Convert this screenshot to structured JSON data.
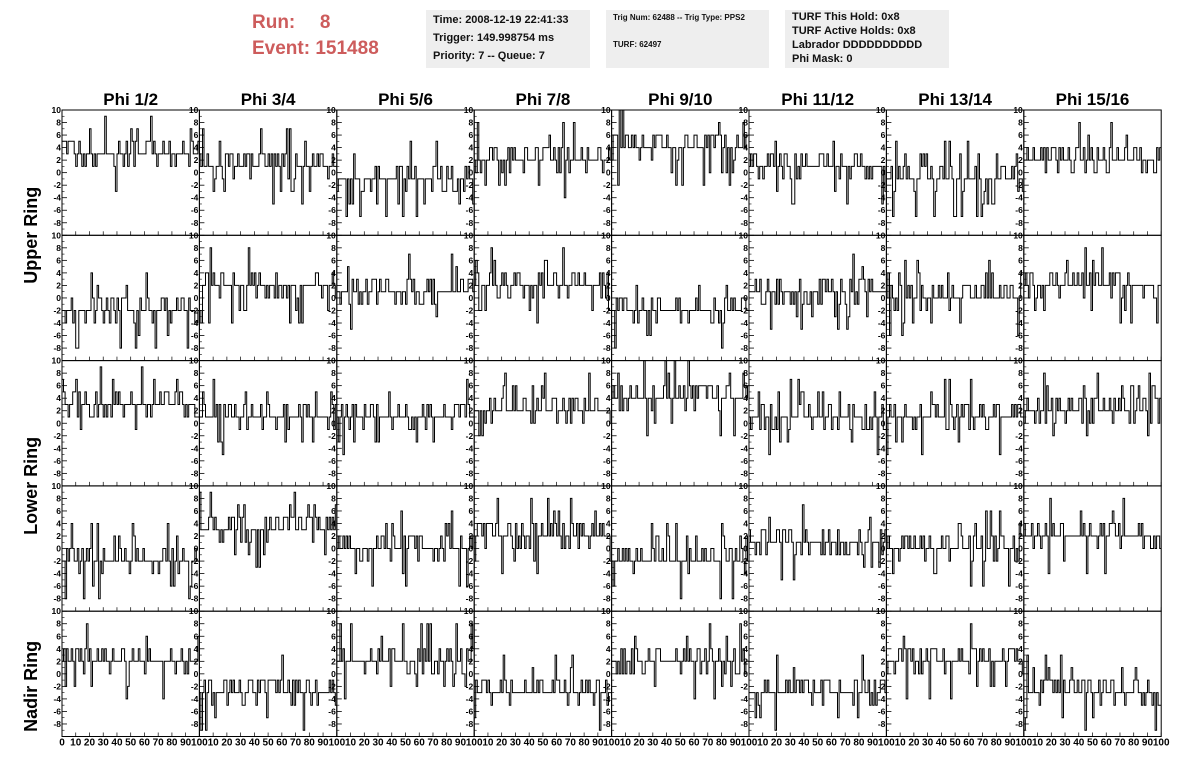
{
  "run_label": "Run:",
  "run_value": "8",
  "event_label": "Event:",
  "event_value": "151488",
  "info_time": "Time: 2008-12-19 22:41:33",
  "info_trigger": "Trigger: 149.998754 ms",
  "info_priority": "Priority: 7 -- Queue: 7",
  "info_trig": "Trig Num: 62488 -- Trig Type: PPS2",
  "info_turf": "TURF: 62497",
  "info_turf_hold": "TURF This Hold: 0x8",
  "info_turf_active": "TURF Active Holds: 0x8",
  "info_labrador": "Labrador DDDDDDDDDD",
  "info_phimask": "Phi Mask: 0",
  "chart_data": {
    "type": "line",
    "columns": [
      "Phi 1/2",
      "Phi 3/4",
      "Phi 5/6",
      "Phi 7/8",
      "Phi 9/10",
      "Phi 11/12",
      "Phi 13/14",
      "Phi 15/16"
    ],
    "ring_labels": [
      "Upper Ring",
      "Lower Ring",
      "Nadir Ring"
    ],
    "rows": 5,
    "xlim": [
      0,
      100
    ],
    "ylim": [
      -10,
      10
    ],
    "x_tick_labels": [
      "0",
      "10",
      "20",
      "30",
      "40",
      "50",
      "60",
      "70",
      "80",
      "90",
      "100"
    ],
    "y_tick_labels": [
      "-8",
      "-6",
      "-4",
      "-2",
      "0",
      "2",
      "4",
      "6",
      "8",
      "10"
    ],
    "samples": 90,
    "panel_baselines": [
      [
        3,
        1,
        -1,
        2,
        4,
        1,
        -1,
        2
      ],
      [
        -2,
        2,
        1,
        2,
        -2,
        1,
        0,
        2
      ],
      [
        3,
        1,
        1,
        2,
        4,
        1,
        1,
        2
      ],
      [
        -2,
        3,
        0,
        2,
        -2,
        1,
        0,
        2
      ],
      [
        2,
        -3,
        2,
        -3,
        2,
        -3,
        2,
        -3
      ]
    ],
    "grid": false,
    "legend": "none"
  }
}
